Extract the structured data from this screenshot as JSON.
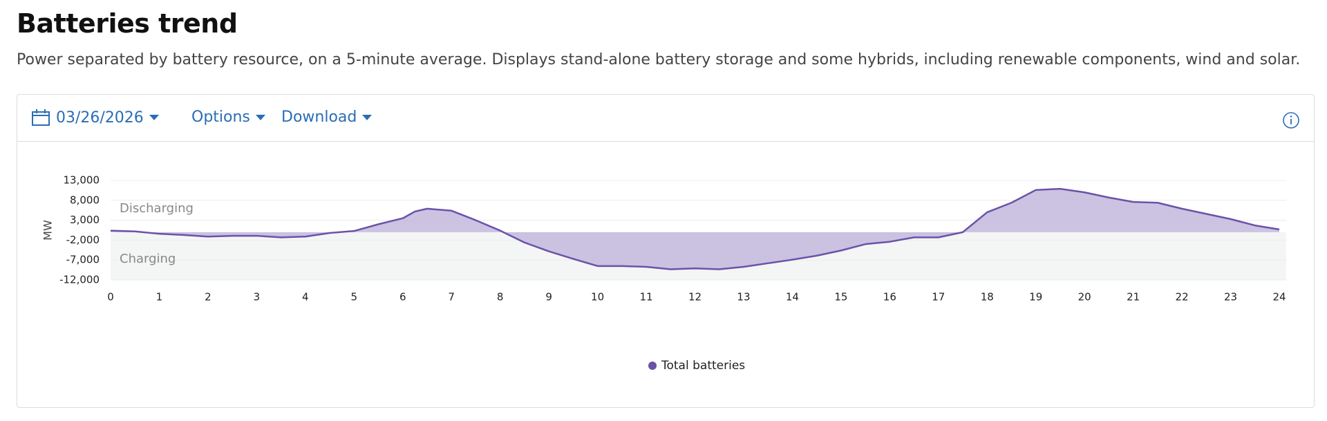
{
  "header": {
    "title": "Batteries trend",
    "description": "Power separated by battery resource, on a 5-minute average. Displays stand-alone battery storage and some hybrids, including renewable components, wind and solar."
  },
  "toolbar": {
    "date": "03/26/2026",
    "options": "Options",
    "download": "Download"
  },
  "chart_data": {
    "type": "area",
    "y_label": "MW",
    "annotations": [
      "Discharging",
      "Charging"
    ],
    "x": [
      0,
      0.5,
      1,
      1.5,
      2,
      2.5,
      3,
      3.5,
      4,
      4.5,
      5,
      5.5,
      6,
      6.25,
      6.5,
      7,
      7.5,
      8,
      8.5,
      9,
      9.5,
      10,
      10.5,
      11,
      11.5,
      12,
      12.5,
      13,
      13.5,
      14,
      14.5,
      15,
      15.5,
      16,
      16.5,
      17,
      17.5,
      18,
      18.5,
      19,
      19.5,
      20,
      20.5,
      21,
      21.5,
      22,
      22.5,
      23,
      23.5,
      24
    ],
    "series": [
      {
        "name": "Total batteries",
        "color": "#6a52a8",
        "fill": "#c7bbdf",
        "values": [
          400,
          200,
          -400,
          -700,
          -1100,
          -900,
          -900,
          -1300,
          -1100,
          -200,
          300,
          2000,
          3500,
          5200,
          5900,
          5400,
          3000,
          400,
          -2600,
          -4800,
          -6700,
          -8500,
          -8500,
          -8700,
          -9300,
          -9100,
          -9300,
          -8700,
          -7800,
          -6900,
          -5900,
          -4600,
          -3000,
          -2400,
          -1300,
          -1300,
          0,
          5000,
          7400,
          10600,
          10900,
          10000,
          8700,
          7600,
          7400,
          5900,
          4600,
          3300,
          1700,
          700
        ]
      }
    ],
    "xlim": [
      0,
      24
    ],
    "xticks": [
      0,
      1,
      2,
      3,
      4,
      5,
      6,
      7,
      8,
      9,
      10,
      11,
      12,
      13,
      14,
      15,
      16,
      17,
      18,
      19,
      20,
      21,
      22,
      23,
      24
    ],
    "ylim": [
      -12000,
      13000
    ],
    "yticks": [
      {
        "value": -12000,
        "label": "-12,000"
      },
      {
        "value": -7000,
        "label": "-7,000"
      },
      {
        "value": -2000,
        "label": "-2,000"
      },
      {
        "value": 3000,
        "label": "3,000"
      },
      {
        "value": 8000,
        "label": "8,000"
      },
      {
        "value": 13000,
        "label": "13,000"
      }
    ],
    "grid": true,
    "legend": "bottom"
  }
}
